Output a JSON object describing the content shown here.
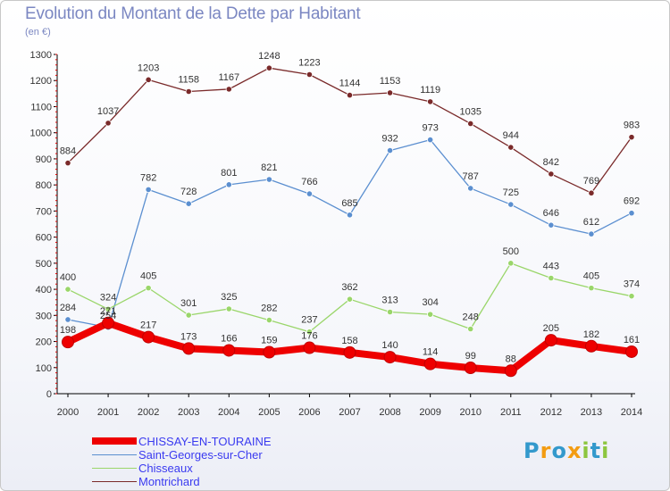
{
  "chart_data": {
    "type": "line",
    "title": "Evolution du Montant de la Dette par Habitant",
    "unit_label": "(en €)",
    "x": [
      "2000",
      "2001",
      "2002",
      "2003",
      "2004",
      "2005",
      "2006",
      "2007",
      "2008",
      "2009",
      "2010",
      "2011",
      "2012",
      "2013",
      "2014"
    ],
    "ylim": [
      0,
      1300
    ],
    "yticks": [
      0,
      100,
      200,
      300,
      400,
      500,
      600,
      700,
      800,
      900,
      1000,
      1100,
      1200,
      1300
    ],
    "grid": false,
    "legend_position": "bottom-left",
    "series": [
      {
        "name": "CHISSAY-EN-TOURAINE",
        "color": "#ee0000",
        "values": [
          198,
          271,
          217,
          173,
          166,
          159,
          176,
          158,
          140,
          114,
          99,
          88,
          205,
          182,
          161
        ]
      },
      {
        "name": "Saint-Georges-sur-Cher",
        "color": "#5b8fd0",
        "values": [
          284,
          254,
          782,
          728,
          801,
          821,
          766,
          685,
          932,
          973,
          787,
          725,
          646,
          612,
          692
        ]
      },
      {
        "name": "Chisseaux",
        "color": "#9ad66a",
        "values": [
          400,
          324,
          405,
          301,
          325,
          282,
          237,
          362,
          313,
          304,
          248,
          500,
          443,
          405,
          374
        ]
      },
      {
        "name": "Montrichard",
        "color": "#7a2a2a",
        "values": [
          884,
          1037,
          1203,
          1158,
          1167,
          1248,
          1223,
          1144,
          1153,
          1119,
          1035,
          944,
          842,
          769,
          983
        ]
      }
    ]
  },
  "logo": {
    "letters": [
      "P",
      "r",
      "o",
      "x",
      "i",
      "t",
      "i"
    ],
    "colors": [
      "#3399cc",
      "#f39c12",
      "#3399cc",
      "#f39c12",
      "#8cc63f",
      "#3399cc",
      "#8cc63f"
    ]
  }
}
